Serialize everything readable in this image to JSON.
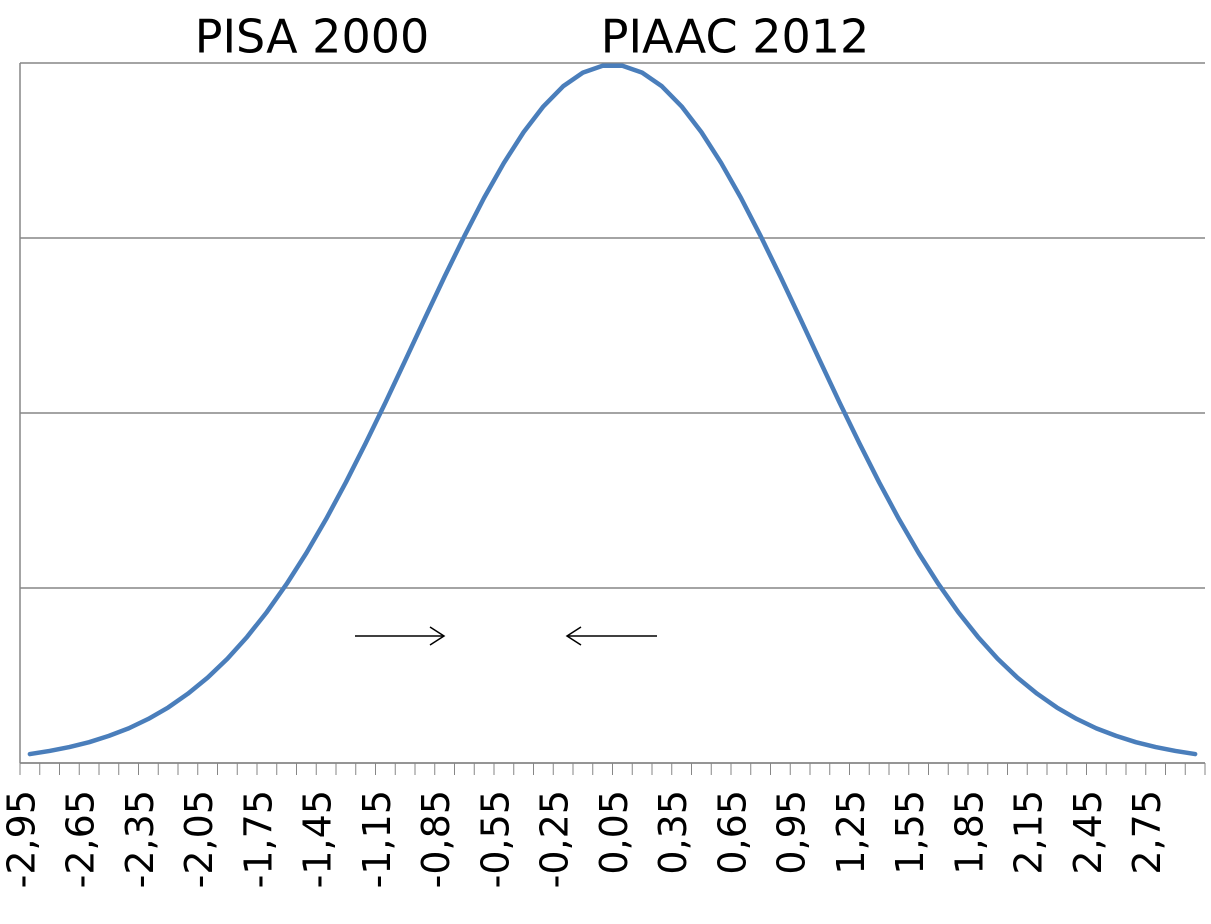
{
  "chart_data": {
    "type": "line",
    "annotations": [
      "PISA 2000",
      "PIAAC 2012"
    ],
    "categories": [
      "-2,95",
      null,
      null,
      "-2,65",
      null,
      null,
      "-2,35",
      null,
      null,
      "-2,05",
      null,
      null,
      "-1,75",
      null,
      null,
      "-1,45",
      null,
      null,
      "-1,15",
      null,
      null,
      "-0,85",
      null,
      null,
      "-0,55",
      null,
      null,
      "-0,25",
      null,
      null,
      "0,05",
      null,
      null,
      "0,35",
      null,
      null,
      "0,65",
      null,
      null,
      "0,95",
      null,
      null,
      "1,25",
      null,
      null,
      "1,55",
      null,
      null,
      "1,85",
      null,
      null,
      "2,15",
      null,
      null,
      "2,45",
      null,
      null,
      "2,75",
      null,
      null
    ],
    "values": [
      0.0051,
      0.0069,
      0.0091,
      0.0119,
      0.0155,
      0.0198,
      0.0252,
      0.0317,
      0.0396,
      0.0488,
      0.0596,
      0.0721,
      0.0863,
      0.1023,
      0.12,
      0.1394,
      0.1604,
      0.1827,
      0.2059,
      0.2299,
      0.2541,
      0.278,
      0.3011,
      0.323,
      0.3429,
      0.3605,
      0.3752,
      0.3867,
      0.3945,
      0.3984,
      0.3984,
      0.3945,
      0.3867,
      0.3752,
      0.3605,
      0.3429,
      0.323,
      0.3011,
      0.278,
      0.2541,
      0.2299,
      0.2059,
      0.1827,
      0.1604,
      0.1394,
      0.12,
      0.1023,
      0.0863,
      0.0721,
      0.0596,
      0.0488,
      0.0396,
      0.0317,
      0.0252,
      0.0198,
      0.0155,
      0.0119,
      0.0091,
      0.0069,
      0.0051
    ],
    "color": "#4a7ebb",
    "ylim": [
      0,
      0.4
    ],
    "yticks": [
      0,
      0.1,
      0.2,
      0.3,
      0.4
    ],
    "grid": true
  }
}
